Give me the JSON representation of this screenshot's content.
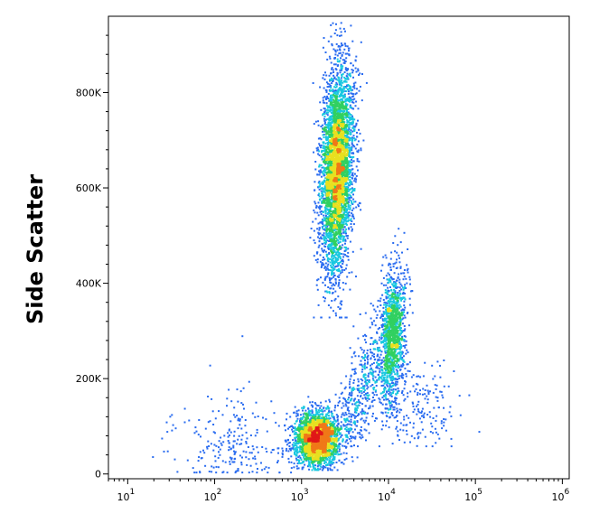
{
  "chart_data": {
    "type": "scatter",
    "title": "",
    "xlabel": "",
    "ylabel": "Side Scatter",
    "x_scale": "log",
    "xlim": [
      6,
      1200000
    ],
    "ylim": [
      -10000,
      960000
    ],
    "grid": false,
    "legend": "none",
    "y_ticks": [
      {
        "value": 0,
        "label": "0"
      },
      {
        "value": 200000,
        "label": "200K"
      },
      {
        "value": 400000,
        "label": "400K"
      },
      {
        "value": 600000,
        "label": "600K"
      },
      {
        "value": 800000,
        "label": "800K"
      }
    ],
    "x_ticks": [
      {
        "value": 10,
        "base": "10",
        "exp": "1"
      },
      {
        "value": 100,
        "base": "10",
        "exp": "2"
      },
      {
        "value": 1000,
        "base": "10",
        "exp": "3"
      },
      {
        "value": 10000,
        "base": "10",
        "exp": "4"
      },
      {
        "value": 100000,
        "base": "10",
        "exp": "5"
      },
      {
        "value": 1000000,
        "base": "10",
        "exp": "6"
      }
    ],
    "density_colors": [
      "#1010c8",
      "#2a6cf0",
      "#18c8e0",
      "#30d060",
      "#e8e020",
      "#f07818",
      "#e01818"
    ],
    "populations": [
      {
        "name": "",
        "x_center": 2500,
        "x_spread_decades": 0.09,
        "y_min": 330000,
        "y_max": 960000,
        "y_peak": 640000,
        "y_spread": 110000,
        "n": 4200,
        "x_slope_per_100k": 0.018
      },
      {
        "name": "",
        "x_center": 1500,
        "x_spread_decades": 0.13,
        "y_min": 10000,
        "y_max": 170000,
        "y_peak": 75000,
        "y_spread": 28000,
        "n": 2600,
        "x_slope_per_100k": 0
      },
      {
        "name": "",
        "x_center": 11000,
        "x_spread_decades": 0.07,
        "y_min": 120000,
        "y_max": 520000,
        "y_peak": 290000,
        "y_spread": 70000,
        "n": 1300,
        "x_slope_per_100k": 0.025
      },
      {
        "name": "",
        "x_center": 140,
        "x_spread_decades": 0.35,
        "y_min": 5000,
        "y_max": 300000,
        "y_peak": 60000,
        "y_spread": 60000,
        "n": 260,
        "x_slope_per_100k": 0
      },
      {
        "name": "",
        "x_center": 20000,
        "x_spread_decades": 0.25,
        "y_min": 60000,
        "y_max": 240000,
        "y_peak": 140000,
        "y_spread": 50000,
        "n": 220,
        "x_slope_per_100k": 0
      },
      {
        "name": "",
        "x_center": 5000,
        "x_spread_decades": 0.12,
        "y_min": 60000,
        "y_max": 400000,
        "y_peak": 180000,
        "y_spread": 80000,
        "n": 500,
        "x_slope_per_100k": 0.15
      }
    ]
  }
}
